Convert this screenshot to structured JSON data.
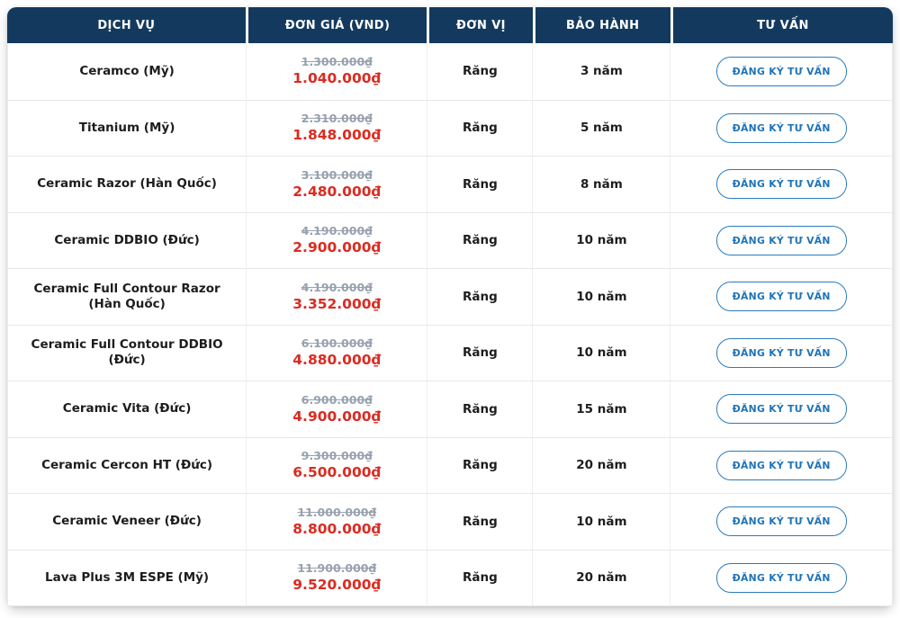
{
  "table": {
    "columns": [
      "DỊCH VỤ",
      "ĐƠN GIÁ (VND)",
      "ĐƠN VỊ",
      "BẢO HÀNH",
      "TƯ VẤN"
    ],
    "consult_button_label": "ĐĂNG KÝ TƯ VẤN",
    "rows": [
      {
        "service": "Ceramco (Mỹ)",
        "old_price": "1.300.000₫",
        "new_price": "1.040.000₫",
        "unit": "Răng",
        "warranty": "3 năm"
      },
      {
        "service": "Titanium (Mỹ)",
        "old_price": "2.310.000₫",
        "new_price": "1.848.000₫",
        "unit": "Răng",
        "warranty": "5 năm"
      },
      {
        "service": "Ceramic Razor (Hàn Quốc)",
        "old_price": "3.100.000₫",
        "new_price": "2.480.000₫",
        "unit": "Răng",
        "warranty": "8 năm"
      },
      {
        "service": "Ceramic DDBIO (Đức)",
        "old_price": "4.190.000₫",
        "new_price": "2.900.000₫",
        "unit": "Răng",
        "warranty": "10 năm"
      },
      {
        "service": "Ceramic Full Contour Razor (Hàn Quốc)",
        "old_price": "4.190.000₫",
        "new_price": "3.352.000₫",
        "unit": "Răng",
        "warranty": "10 năm"
      },
      {
        "service": "Ceramic Full Contour DDBIO (Đức)",
        "old_price": "6.100.000₫",
        "new_price": "4.880.000₫",
        "unit": "Răng",
        "warranty": "10 năm"
      },
      {
        "service": "Ceramic Vita (Đức)",
        "old_price": "6.900.000₫",
        "new_price": "4.900.000₫",
        "unit": "Răng",
        "warranty": "15 năm"
      },
      {
        "service": "Ceramic Cercon HT (Đức)",
        "old_price": "9.300.000₫",
        "new_price": "6.500.000₫",
        "unit": "Răng",
        "warranty": "20 năm"
      },
      {
        "service": "Ceramic Veneer (Đức)",
        "old_price": "11.000.000₫",
        "new_price": "8.800.000₫",
        "unit": "Răng",
        "warranty": "10 năm"
      },
      {
        "service": "Lava Plus 3M ESPE (Mỹ)",
        "old_price": "11.900.000₫",
        "new_price": "9.520.000₫",
        "unit": "Răng",
        "warranty": "20 năm"
      }
    ],
    "colors": {
      "header_background": "#133a5e",
      "header_text": "#ffffff",
      "old_price_text": "#97a1ae",
      "new_price_text": "#dc2b21",
      "button_blue": "#1e73b8",
      "body_text": "#1d1d1f"
    }
  }
}
